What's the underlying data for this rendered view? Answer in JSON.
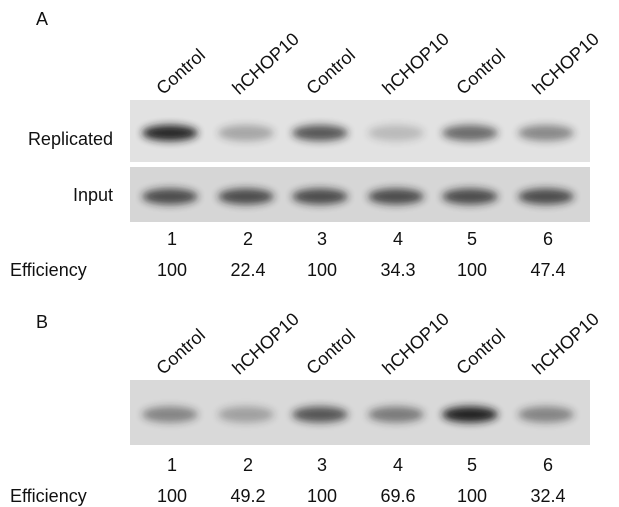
{
  "panels": [
    {
      "label": "A",
      "lanes": [
        "Control",
        "hCHOP10",
        "Control",
        "hCHOP10",
        "Control",
        "hCHOP10"
      ],
      "rows": [
        "Replicated",
        "Input"
      ],
      "lane_numbers": [
        1,
        2,
        3,
        4,
        5,
        6
      ],
      "efficiency_label": "Efficiency",
      "efficiency": [
        100,
        22.4,
        100,
        34.3,
        100,
        47.4
      ]
    },
    {
      "label": "B",
      "lanes": [
        "Control",
        "hCHOP10",
        "Control",
        "hCHOP10",
        "Control",
        "hCHOP10"
      ],
      "lane_numbers": [
        1,
        2,
        3,
        4,
        5,
        6
      ],
      "efficiency_label": "Efficiency",
      "efficiency": [
        100,
        49.2,
        100,
        69.6,
        100,
        32.4
      ]
    }
  ]
}
